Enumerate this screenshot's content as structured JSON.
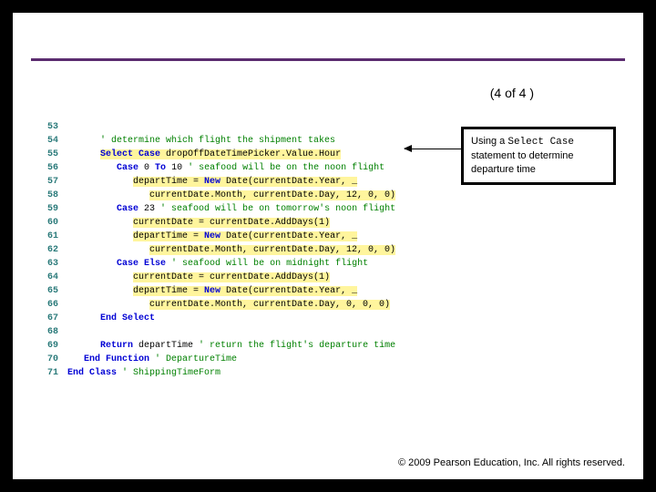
{
  "page_indicator": "(4 of 4 )",
  "callout": {
    "prefix": "Using a ",
    "mono": "Select Case",
    "suffix": " statement to determine departure time"
  },
  "footer": "© 2009 Pearson Education, Inc.  All rights reserved.",
  "colors": {
    "background": "#000000",
    "slide_bg": "#ffffff",
    "divider": "#5b2c6f",
    "line_num": "#2a7a7a",
    "keyword": "#0000d4",
    "comment": "#008000",
    "highlight": "#fff59d",
    "callout_border": "#000000"
  },
  "code": [
    {
      "n": "53",
      "indent": 0,
      "hl": false,
      "tokens": []
    },
    {
      "n": "54",
      "indent": 2,
      "hl": false,
      "tokens": [
        {
          "t": "' determine which flight the shipment takes",
          "c": "cm"
        }
      ]
    },
    {
      "n": "55",
      "indent": 2,
      "hl": true,
      "tokens": [
        {
          "t": "Select Case",
          "c": "kw"
        },
        {
          "t": " dropOffDateTimePicker.Value.Hour",
          "c": "lit"
        }
      ]
    },
    {
      "n": "56",
      "indent": 3,
      "hl": false,
      "tokens": [
        {
          "t": "Case",
          "c": "kw"
        },
        {
          "t": " 0 ",
          "c": "lit"
        },
        {
          "t": "To",
          "c": "kw"
        },
        {
          "t": " 10 ",
          "c": "lit"
        },
        {
          "t": "' seafood will be on the noon flight",
          "c": "cm"
        }
      ]
    },
    {
      "n": "57",
      "indent": 4,
      "hl": true,
      "tokens": [
        {
          "t": "departTime = ",
          "c": "lit"
        },
        {
          "t": "New",
          "c": "kw"
        },
        {
          "t": " Date(currentDate.Year, _",
          "c": "lit"
        }
      ]
    },
    {
      "n": "58",
      "indent": 5,
      "hl": true,
      "tokens": [
        {
          "t": "currentDate.Month, currentDate.Day, 12, 0, 0)",
          "c": "lit"
        }
      ]
    },
    {
      "n": "59",
      "indent": 3,
      "hl": false,
      "tokens": [
        {
          "t": "Case",
          "c": "kw"
        },
        {
          "t": " 23 ",
          "c": "lit"
        },
        {
          "t": "' seafood will be on tomorrow's noon flight",
          "c": "cm"
        }
      ]
    },
    {
      "n": "60",
      "indent": 4,
      "hl": true,
      "tokens": [
        {
          "t": "currentDate = currentDate.AddDays(1)",
          "c": "lit"
        }
      ]
    },
    {
      "n": "61",
      "indent": 4,
      "hl": true,
      "tokens": [
        {
          "t": "departTime = ",
          "c": "lit"
        },
        {
          "t": "New",
          "c": "kw"
        },
        {
          "t": " Date(currentDate.Year, _",
          "c": "lit"
        }
      ]
    },
    {
      "n": "62",
      "indent": 5,
      "hl": true,
      "tokens": [
        {
          "t": "currentDate.Month, currentDate.Day, 12, 0, 0)",
          "c": "lit"
        }
      ]
    },
    {
      "n": "63",
      "indent": 3,
      "hl": false,
      "tokens": [
        {
          "t": "Case Else",
          "c": "kw"
        },
        {
          "t": " ",
          "c": "lit"
        },
        {
          "t": "' seafood will be on midnight flight",
          "c": "cm"
        }
      ]
    },
    {
      "n": "64",
      "indent": 4,
      "hl": true,
      "tokens": [
        {
          "t": "currentDate = currentDate.AddDays(1)",
          "c": "lit"
        }
      ]
    },
    {
      "n": "65",
      "indent": 4,
      "hl": true,
      "tokens": [
        {
          "t": "departTime = ",
          "c": "lit"
        },
        {
          "t": "New",
          "c": "kw"
        },
        {
          "t": " Date(currentDate.Year, _",
          "c": "lit"
        }
      ]
    },
    {
      "n": "66",
      "indent": 5,
      "hl": true,
      "tokens": [
        {
          "t": "currentDate.Month, currentDate.Day, 0, 0, 0)",
          "c": "lit"
        }
      ]
    },
    {
      "n": "67",
      "indent": 2,
      "hl": false,
      "tokens": [
        {
          "t": "End Select",
          "c": "kw"
        }
      ]
    },
    {
      "n": "68",
      "indent": 0,
      "hl": false,
      "tokens": []
    },
    {
      "n": "69",
      "indent": 2,
      "hl": false,
      "tokens": [
        {
          "t": "Return",
          "c": "kw"
        },
        {
          "t": " departTime ",
          "c": "lit"
        },
        {
          "t": "' return the flight's departure time",
          "c": "cm"
        }
      ]
    },
    {
      "n": "70",
      "indent": 1,
      "hl": false,
      "tokens": [
        {
          "t": "End Function",
          "c": "kw"
        },
        {
          "t": " ",
          "c": "lit"
        },
        {
          "t": "' DepartureTime",
          "c": "cm"
        }
      ]
    },
    {
      "n": "71",
      "indent": 0,
      "hl": false,
      "tokens": [
        {
          "t": "End Class",
          "c": "kw"
        },
        {
          "t": " ",
          "c": "lit"
        },
        {
          "t": "' ShippingTimeForm",
          "c": "cm"
        }
      ]
    }
  ]
}
